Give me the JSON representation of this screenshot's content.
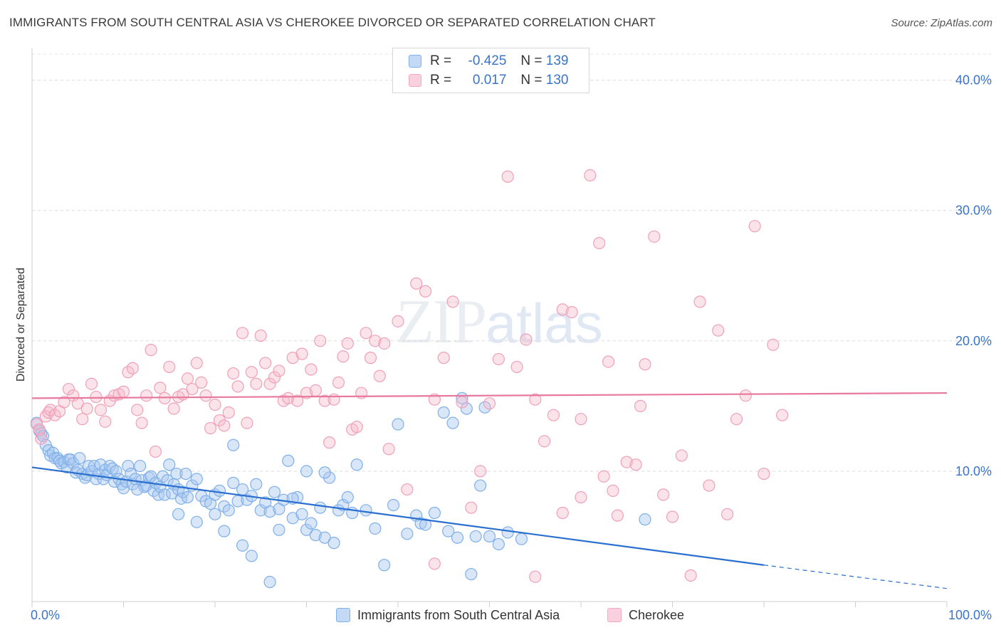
{
  "title": "IMMIGRANTS FROM SOUTH CENTRAL ASIA VS CHEROKEE DIVORCED OR SEPARATED CORRELATION CHART",
  "source": "Source: ZipAtlas.com",
  "watermark": {
    "part1": "ZIP",
    "part2": "atlas"
  },
  "legend": {
    "rows": [
      {
        "r_label": "R =",
        "r_value": "-0.425",
        "n_label": "N =",
        "n_value": "139",
        "color": "#a9c8f0"
      },
      {
        "r_label": "R =",
        "r_value": "0.017",
        "n_label": "N =",
        "n_value": "130",
        "color": "#f6b8cb"
      }
    ]
  },
  "bottom_legend": [
    {
      "label": "Immigrants from South Central Asia",
      "color": "#a9c8f0"
    },
    {
      "label": "Cherokee",
      "color": "#f6b8cb"
    }
  ],
  "chart_data": {
    "type": "scatter",
    "title": "IMMIGRANTS FROM SOUTH CENTRAL ASIA VS CHEROKEE DIVORCED OR SEPARATED CORRELATION CHART",
    "xlabel": "",
    "ylabel": "Divorced or Separated",
    "xlim": [
      0,
      100
    ],
    "ylim": [
      0,
      42
    ],
    "x_tick_labels": [
      "0.0%",
      "100.0%"
    ],
    "y_ticks": [
      10,
      20,
      30,
      40
    ],
    "y_tick_labels": [
      "10.0%",
      "20.0%",
      "30.0%",
      "40.0%"
    ],
    "grid": true,
    "series": [
      {
        "name": "Immigrants from South Central Asia",
        "color": "#7fb0ea",
        "trend": {
          "x0": 0,
          "y0": 10.3,
          "x1": 80,
          "y1": 2.8,
          "dash_to_x": 100,
          "dash_to_y": 1.0,
          "color": "#2a6fd0"
        },
        "points": [
          [
            0.5,
            13.7
          ],
          [
            0.8,
            13.1
          ],
          [
            1.0,
            12.9
          ],
          [
            1.2,
            12.7
          ],
          [
            1.5,
            12.0
          ],
          [
            1.8,
            11.6
          ],
          [
            2.0,
            11.2
          ],
          [
            2.3,
            11.4
          ],
          [
            2.5,
            11.0
          ],
          [
            2.8,
            11.0
          ],
          [
            3.0,
            10.8
          ],
          [
            3.2,
            10.6
          ],
          [
            3.5,
            10.7
          ],
          [
            3.8,
            10.3
          ],
          [
            4.0,
            10.9
          ],
          [
            4.2,
            10.9
          ],
          [
            4.5,
            10.6
          ],
          [
            4.8,
            9.9
          ],
          [
            5.0,
            10.1
          ],
          [
            5.2,
            11.0
          ],
          [
            5.5,
            9.8
          ],
          [
            5.8,
            9.5
          ],
          [
            6.0,
            9.7
          ],
          [
            6.2,
            10.4
          ],
          [
            6.5,
            10.0
          ],
          [
            6.8,
            10.4
          ],
          [
            7.0,
            9.4
          ],
          [
            7.3,
            9.8
          ],
          [
            7.5,
            10.5
          ],
          [
            7.8,
            9.4
          ],
          [
            8.0,
            10.1
          ],
          [
            8.2,
            9.7
          ],
          [
            8.5,
            10.4
          ],
          [
            8.8,
            10.2
          ],
          [
            9.0,
            9.2
          ],
          [
            9.2,
            10.0
          ],
          [
            9.5,
            9.4
          ],
          [
            9.8,
            9.0
          ],
          [
            10.0,
            8.7
          ],
          [
            10.3,
            9.2
          ],
          [
            10.5,
            10.4
          ],
          [
            10.8,
            9.8
          ],
          [
            11.0,
            9.0
          ],
          [
            11.3,
            9.4
          ],
          [
            11.5,
            8.6
          ],
          [
            11.8,
            10.4
          ],
          [
            12.0,
            9.3
          ],
          [
            12.3,
            8.8
          ],
          [
            12.5,
            8.9
          ],
          [
            12.8,
            9.5
          ],
          [
            13.0,
            9.6
          ],
          [
            13.3,
            8.5
          ],
          [
            13.5,
            9.1
          ],
          [
            13.8,
            8.2
          ],
          [
            14.0,
            8.8
          ],
          [
            14.3,
            9.6
          ],
          [
            14.5,
            8.2
          ],
          [
            14.8,
            9.3
          ],
          [
            15.0,
            10.5
          ],
          [
            15.3,
            8.3
          ],
          [
            15.5,
            9.0
          ],
          [
            15.8,
            9.8
          ],
          [
            16.0,
            8.6
          ],
          [
            16.3,
            7.9
          ],
          [
            16.5,
            8.4
          ],
          [
            16.8,
            9.8
          ],
          [
            17.0,
            8.0
          ],
          [
            17.5,
            8.9
          ],
          [
            18.0,
            9.4
          ],
          [
            18.5,
            8.1
          ],
          [
            19.0,
            7.7
          ],
          [
            19.5,
            7.5
          ],
          [
            20.0,
            8.2
          ],
          [
            20.5,
            8.5
          ],
          [
            21.0,
            7.3
          ],
          [
            21.5,
            7.0
          ],
          [
            22.0,
            9.1
          ],
          [
            22.5,
            7.7
          ],
          [
            23.0,
            8.6
          ],
          [
            23.5,
            7.8
          ],
          [
            24.0,
            8.1
          ],
          [
            24.5,
            9.0
          ],
          [
            25.0,
            7.0
          ],
          [
            25.5,
            7.6
          ],
          [
            26.0,
            6.9
          ],
          [
            26.5,
            8.4
          ],
          [
            27.0,
            7.1
          ],
          [
            27.5,
            7.8
          ],
          [
            28.0,
            10.8
          ],
          [
            28.5,
            6.4
          ],
          [
            29.0,
            8.0
          ],
          [
            29.5,
            6.7
          ],
          [
            30.0,
            5.5
          ],
          [
            30.5,
            6.0
          ],
          [
            31.0,
            5.1
          ],
          [
            31.5,
            7.2
          ],
          [
            32.0,
            4.9
          ],
          [
            32.5,
            9.5
          ],
          [
            33.0,
            4.5
          ],
          [
            33.5,
            7.0
          ],
          [
            34.0,
            7.4
          ],
          [
            34.5,
            8.0
          ],
          [
            35.0,
            6.8
          ],
          [
            16.0,
            6.7
          ],
          [
            18.0,
            6.1
          ],
          [
            20.0,
            6.7
          ],
          [
            21.0,
            5.4
          ],
          [
            22.0,
            12.0
          ],
          [
            23.0,
            4.3
          ],
          [
            24.0,
            3.5
          ],
          [
            26.0,
            1.5
          ],
          [
            27.0,
            5.5
          ],
          [
            28.5,
            7.9
          ],
          [
            30.0,
            10.0
          ],
          [
            32.0,
            9.9
          ],
          [
            35.5,
            10.5
          ],
          [
            36.5,
            7.0
          ],
          [
            37.5,
            5.6
          ],
          [
            38.5,
            2.8
          ],
          [
            39.5,
            7.4
          ],
          [
            40.0,
            13.6
          ],
          [
            41.0,
            5.2
          ],
          [
            42.0,
            6.6
          ],
          [
            42.5,
            6.0
          ],
          [
            43.0,
            5.9
          ],
          [
            44.0,
            6.8
          ],
          [
            45.0,
            14.5
          ],
          [
            45.5,
            5.4
          ],
          [
            46.0,
            13.7
          ],
          [
            46.5,
            4.9
          ],
          [
            47.0,
            15.6
          ],
          [
            47.5,
            14.8
          ],
          [
            48.0,
            2.1
          ],
          [
            48.5,
            5.0
          ],
          [
            49.0,
            8.9
          ],
          [
            49.5,
            14.9
          ],
          [
            50.0,
            5.0
          ],
          [
            51.0,
            4.4
          ],
          [
            52.0,
            5.3
          ],
          [
            53.5,
            4.8
          ],
          [
            67.0,
            6.3
          ]
        ]
      },
      {
        "name": "Cherokee",
        "color": "#f4a7c0",
        "trend": {
          "x0": 0,
          "y0": 15.6,
          "x1": 100,
          "y1": 16.0,
          "color": "#e8789e"
        },
        "points": [
          [
            0.5,
            13.6
          ],
          [
            0.8,
            13.2
          ],
          [
            1.0,
            12.5
          ],
          [
            1.5,
            14.2
          ],
          [
            1.8,
            14.5
          ],
          [
            2.0,
            14.7
          ],
          [
            2.5,
            14.3
          ],
          [
            3.0,
            14.6
          ],
          [
            3.5,
            15.3
          ],
          [
            4.0,
            16.3
          ],
          [
            4.5,
            15.8
          ],
          [
            5.0,
            15.2
          ],
          [
            5.5,
            14.0
          ],
          [
            6.0,
            14.8
          ],
          [
            6.5,
            16.7
          ],
          [
            7.0,
            15.7
          ],
          [
            7.5,
            14.7
          ],
          [
            8.0,
            13.8
          ],
          [
            8.5,
            15.4
          ],
          [
            9.0,
            15.8
          ],
          [
            9.5,
            15.9
          ],
          [
            10.0,
            16.1
          ],
          [
            10.5,
            17.6
          ],
          [
            11.0,
            17.9
          ],
          [
            11.5,
            14.7
          ],
          [
            12.0,
            13.7
          ],
          [
            12.5,
            15.8
          ],
          [
            13.0,
            19.3
          ],
          [
            13.5,
            11.5
          ],
          [
            14.0,
            16.4
          ],
          [
            14.5,
            15.6
          ],
          [
            15.0,
            18.0
          ],
          [
            15.5,
            14.8
          ],
          [
            16.0,
            15.7
          ],
          [
            16.5,
            15.9
          ],
          [
            17.0,
            17.1
          ],
          [
            17.5,
            16.3
          ],
          [
            18.0,
            18.3
          ],
          [
            18.5,
            16.8
          ],
          [
            19.0,
            15.8
          ],
          [
            19.5,
            13.3
          ],
          [
            20.0,
            15.1
          ],
          [
            20.5,
            13.9
          ],
          [
            21.0,
            13.5
          ],
          [
            21.5,
            14.5
          ],
          [
            22.0,
            17.5
          ],
          [
            22.5,
            16.5
          ],
          [
            23.0,
            20.6
          ],
          [
            23.5,
            13.7
          ],
          [
            24.0,
            17.6
          ],
          [
            24.5,
            16.7
          ],
          [
            25.0,
            20.4
          ],
          [
            25.5,
            18.3
          ],
          [
            26.0,
            16.7
          ],
          [
            26.5,
            17.2
          ],
          [
            27.0,
            17.7
          ],
          [
            27.5,
            15.4
          ],
          [
            28.0,
            15.6
          ],
          [
            28.5,
            18.7
          ],
          [
            29.0,
            15.4
          ],
          [
            29.5,
            19.0
          ],
          [
            30.0,
            16.0
          ],
          [
            30.5,
            17.8
          ],
          [
            31.0,
            16.2
          ],
          [
            31.5,
            20.0
          ],
          [
            32.0,
            15.4
          ],
          [
            32.5,
            12.2
          ],
          [
            33.0,
            15.5
          ],
          [
            33.5,
            16.8
          ],
          [
            34.0,
            18.8
          ],
          [
            34.5,
            19.8
          ],
          [
            35.0,
            13.2
          ],
          [
            35.5,
            13.4
          ],
          [
            36.0,
            16.0
          ],
          [
            36.5,
            20.6
          ],
          [
            37.0,
            18.7
          ],
          [
            37.5,
            20.0
          ],
          [
            38.0,
            17.3
          ],
          [
            38.5,
            19.8
          ],
          [
            39.0,
            11.7
          ],
          [
            40.0,
            21.5
          ],
          [
            41.0,
            8.6
          ],
          [
            42.0,
            24.4
          ],
          [
            43.0,
            23.8
          ],
          [
            44.0,
            15.5
          ],
          [
            45.0,
            18.7
          ],
          [
            46.0,
            23.0
          ],
          [
            47.0,
            15.3
          ],
          [
            48.0,
            7.2
          ],
          [
            49.0,
            10.0
          ],
          [
            50.0,
            15.2
          ],
          [
            51.0,
            18.6
          ],
          [
            52.0,
            32.6
          ],
          [
            53.0,
            18.0
          ],
          [
            54.0,
            20.1
          ],
          [
            55.0,
            15.5
          ],
          [
            56.0,
            12.3
          ],
          [
            57.0,
            14.3
          ],
          [
            58.0,
            22.4
          ],
          [
            59.0,
            22.2
          ],
          [
            60.0,
            8.0
          ],
          [
            61.0,
            32.7
          ],
          [
            62.0,
            27.5
          ],
          [
            63.0,
            18.4
          ],
          [
            64.0,
            6.6
          ],
          [
            65.0,
            10.7
          ],
          [
            66.0,
            10.5
          ],
          [
            67.0,
            18.2
          ],
          [
            68.0,
            28.0
          ],
          [
            69.0,
            8.2
          ],
          [
            70.0,
            6.5
          ],
          [
            71.0,
            11.2
          ],
          [
            72.0,
            2.0
          ],
          [
            73.0,
            23.0
          ],
          [
            74.0,
            8.9
          ],
          [
            75.0,
            20.8
          ],
          [
            76.0,
            6.7
          ],
          [
            77.0,
            14.0
          ],
          [
            78.0,
            15.8
          ],
          [
            79.0,
            28.8
          ],
          [
            80.0,
            9.8
          ],
          [
            81.0,
            19.7
          ],
          [
            82.0,
            14.3
          ],
          [
            44.0,
            2.9
          ],
          [
            55.0,
            1.9
          ],
          [
            58.0,
            6.8
          ],
          [
            62.5,
            9.6
          ],
          [
            66.5,
            15.0
          ],
          [
            60.0,
            14.0
          ],
          [
            63.5,
            8.5
          ]
        ]
      }
    ]
  }
}
